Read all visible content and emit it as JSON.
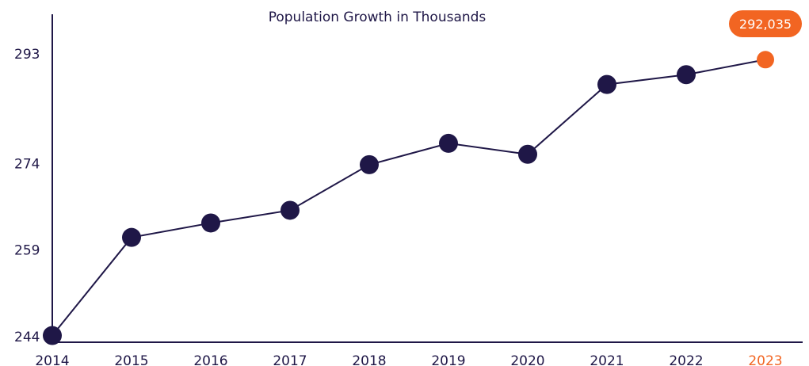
{
  "colors": {
    "primary": "#1f1747",
    "highlight": "#f26522",
    "callout_text": "#ffffff",
    "background": "#ffffff"
  },
  "chart_data": {
    "type": "line",
    "title": "Population Growth in Thousands",
    "x": [
      "2014",
      "2015",
      "2016",
      "2017",
      "2018",
      "2019",
      "2020",
      "2021",
      "2022",
      "2023"
    ],
    "series": [
      {
        "values": [
          244.2,
          261.2,
          263.7,
          265.9,
          273.8,
          277.5,
          275.6,
          287.7,
          289.4,
          292.0
        ]
      }
    ],
    "highlight": {
      "x": "2023",
      "label": "292,035"
    },
    "yticks": [
      "244",
      "259",
      "274",
      "293"
    ],
    "ylim": [
      244,
      293
    ],
    "xlabel": "",
    "ylabel": "",
    "grid": false,
    "legend": "none"
  }
}
